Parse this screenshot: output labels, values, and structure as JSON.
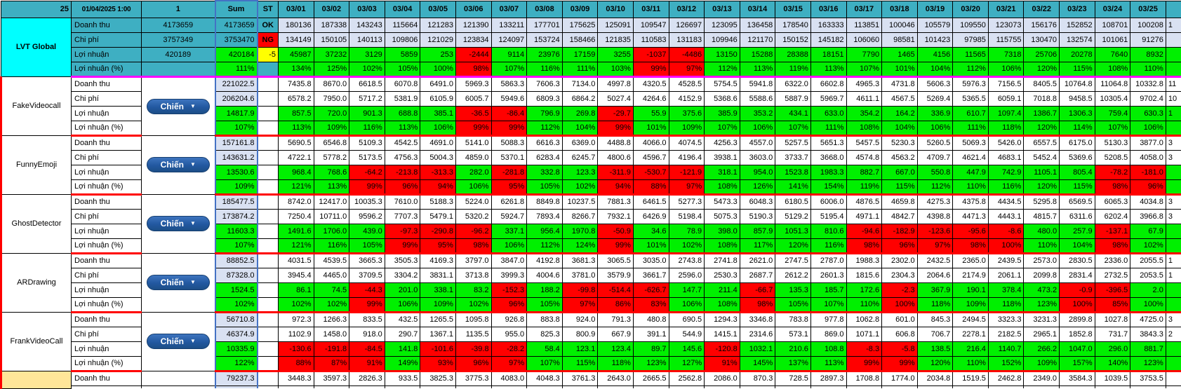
{
  "header": {
    "corner": "25",
    "timestamp": "01/04/2025 1:00",
    "col3": "1",
    "sum": "Sum",
    "st": "ST",
    "dates": [
      "03/01",
      "03/02",
      "03/03",
      "03/04",
      "03/05",
      "03/06",
      "03/07",
      "03/08",
      "03/09",
      "03/10",
      "03/11",
      "03/12",
      "03/13",
      "03/14",
      "03/15",
      "03/16",
      "03/17",
      "03/18",
      "03/19",
      "03/20",
      "03/21",
      "03/22",
      "03/23",
      "03/24",
      "03/25"
    ]
  },
  "metric_labels": [
    "Doanh thu",
    "Chi phí",
    "Lợi nhuận",
    "Lợi nhuận (%)"
  ],
  "button_label": "Chiến",
  "colors": {
    "teal": "#3EAFC2",
    "cyan": "#00FFFF",
    "light_blue": "#D9E1F2",
    "green": "#00F000",
    "red": "#FF0000",
    "yellow": "#FFFF00",
    "magenta_separator": "#FF00FF",
    "red_separator": "#FF0000",
    "tan": "#FFE699",
    "sum_column_border": "#4472C4",
    "button_blue": "#2258A0"
  },
  "groups": [
    {
      "name": "LVT Global",
      "type": "summary",
      "manual": [
        "4173659",
        "3757349",
        "420189",
        ""
      ],
      "sum": [
        "4173659",
        "3753470",
        "420184",
        "111%"
      ],
      "st": [
        "OK",
        "NG",
        "-5",
        ""
      ],
      "dt": [
        "180136",
        "187338",
        "143243",
        "115664",
        "121283",
        "121390",
        "133211",
        "177701",
        "175625",
        "125091",
        "109547",
        "126697",
        "123095",
        "136458",
        "178540",
        "163333",
        "113851",
        "100046",
        "105579",
        "109550",
        "123073",
        "156176",
        "152852",
        "108701",
        "100208"
      ],
      "cp": [
        "134149",
        "150105",
        "140113",
        "109806",
        "121029",
        "123834",
        "124097",
        "153724",
        "158466",
        "121835",
        "110583",
        "131183",
        "109946",
        "121170",
        "150152",
        "145182",
        "106060",
        "98581",
        "101423",
        "97985",
        "115755",
        "130470",
        "132574",
        "101061",
        "91276"
      ],
      "ln": [
        "45987",
        "37232",
        "3129",
        "5859",
        "253",
        "-2444",
        "9114",
        "23976",
        "17159",
        "3255",
        "-1037",
        "-4486",
        "13150",
        "15288",
        "28388",
        "18151",
        "7790",
        "1465",
        "4156",
        "11565",
        "7318",
        "25706",
        "20278",
        "7640",
        "8932"
      ],
      "pct": [
        "134%",
        "125%",
        "102%",
        "105%",
        "100%",
        "98%",
        "107%",
        "116%",
        "111%",
        "103%",
        "99%",
        "97%",
        "112%",
        "113%",
        "119%",
        "113%",
        "107%",
        "101%",
        "104%",
        "112%",
        "106%",
        "120%",
        "115%",
        "108%",
        "110%"
      ],
      "edge": [
        "1",
        "",
        "",
        ""
      ]
    },
    {
      "name": "FakeVideocall",
      "type": "app",
      "sum": [
        "221022.5",
        "206204.6",
        "14817.9",
        "107%"
      ],
      "dt": [
        "7435.8",
        "8670.0",
        "6618.5",
        "6070.8",
        "6491.0",
        "5969.3",
        "5863.3",
        "7606.3",
        "7134.0",
        "4997.8",
        "4320.5",
        "4528.5",
        "5754.5",
        "5941.8",
        "6322.0",
        "6602.8",
        "4965.3",
        "4731.8",
        "5606.3",
        "5976.3",
        "7156.5",
        "8405.5",
        "10764.8",
        "11064.8",
        "10332.8"
      ],
      "cp": [
        "6578.2",
        "7950.0",
        "5717.2",
        "5381.9",
        "6105.9",
        "6005.7",
        "5949.6",
        "6809.3",
        "6864.2",
        "5027.4",
        "4264.6",
        "4152.9",
        "5368.6",
        "5588.6",
        "5887.9",
        "5969.7",
        "4611.1",
        "4567.5",
        "5269.4",
        "5365.5",
        "6059.1",
        "7018.8",
        "9458.5",
        "10305.4",
        "9702.4"
      ],
      "ln": [
        "857.5",
        "720.0",
        "901.3",
        "688.8",
        "385.1",
        "-36.5",
        "-86.4",
        "796.9",
        "269.8",
        "-29.7",
        "55.9",
        "375.6",
        "385.9",
        "353.2",
        "434.1",
        "633.0",
        "354.2",
        "164.2",
        "336.9",
        "610.7",
        "1097.4",
        "1386.7",
        "1306.3",
        "759.4",
        "630.3"
      ],
      "pct": [
        "113%",
        "109%",
        "116%",
        "113%",
        "106%",
        "99%",
        "99%",
        "112%",
        "104%",
        "99%",
        "101%",
        "109%",
        "107%",
        "106%",
        "107%",
        "111%",
        "108%",
        "104%",
        "106%",
        "111%",
        "118%",
        "120%",
        "114%",
        "107%",
        "106%"
      ],
      "edge": [
        "11",
        "10",
        "1",
        ""
      ]
    },
    {
      "name": "FunnyEmoji",
      "type": "app",
      "sum": [
        "157161.8",
        "143631.2",
        "13530.6",
        "109%"
      ],
      "dt": [
        "5690.5",
        "6546.8",
        "5109.3",
        "4542.5",
        "4691.0",
        "5141.0",
        "5088.3",
        "6616.3",
        "6369.0",
        "4488.8",
        "4066.0",
        "4074.5",
        "4256.3",
        "4557.0",
        "5257.5",
        "5651.3",
        "5457.5",
        "5230.3",
        "5260.5",
        "5069.3",
        "5426.0",
        "6557.5",
        "6175.0",
        "5130.3",
        "3877.0"
      ],
      "cp": [
        "4722.1",
        "5778.2",
        "5173.5",
        "4756.3",
        "5004.3",
        "4859.0",
        "5370.1",
        "6283.4",
        "6245.7",
        "4800.6",
        "4596.7",
        "4196.4",
        "3938.1",
        "3603.0",
        "3733.7",
        "3668.0",
        "4574.8",
        "4563.2",
        "4709.7",
        "4621.4",
        "4683.1",
        "5452.4",
        "5369.6",
        "5208.5",
        "4058.0"
      ],
      "ln": [
        "968.4",
        "768.6",
        "-64.2",
        "-213.8",
        "-313.3",
        "282.0",
        "-281.8",
        "332.8",
        "123.3",
        "-311.9",
        "-530.7",
        "-121.9",
        "318.1",
        "954.0",
        "1523.8",
        "1983.3",
        "882.7",
        "667.0",
        "550.8",
        "447.9",
        "742.9",
        "1105.1",
        "805.4",
        "-78.2",
        "-181.0"
      ],
      "pct": [
        "121%",
        "113%",
        "99%",
        "96%",
        "94%",
        "106%",
        "95%",
        "105%",
        "102%",
        "94%",
        "88%",
        "97%",
        "108%",
        "126%",
        "141%",
        "154%",
        "119%",
        "115%",
        "112%",
        "110%",
        "116%",
        "120%",
        "115%",
        "98%",
        "96%"
      ],
      "edge": [
        "3",
        "3",
        "",
        ""
      ]
    },
    {
      "name": "GhostDetector",
      "type": "app",
      "sum": [
        "185477.5",
        "173874.2",
        "11603.3",
        "107%"
      ],
      "dt": [
        "8742.0",
        "12417.0",
        "10035.3",
        "7610.0",
        "5188.3",
        "5224.0",
        "6261.8",
        "8849.8",
        "10237.5",
        "7881.3",
        "6461.5",
        "5277.3",
        "5473.3",
        "6048.3",
        "6180.5",
        "6006.0",
        "4876.5",
        "4659.8",
        "4275.3",
        "4375.8",
        "4434.5",
        "5295.8",
        "6569.5",
        "6065.3",
        "4034.8"
      ],
      "cp": [
        "7250.4",
        "10711.0",
        "9596.2",
        "7707.3",
        "5479.1",
        "5320.2",
        "5924.7",
        "7893.4",
        "8266.7",
        "7932.1",
        "6426.9",
        "5198.4",
        "5075.3",
        "5190.3",
        "5129.2",
        "5195.4",
        "4971.1",
        "4842.7",
        "4398.8",
        "4471.3",
        "4443.1",
        "4815.7",
        "6311.6",
        "6202.4",
        "3966.8"
      ],
      "ln": [
        "1491.6",
        "1706.0",
        "439.0",
        "-97.3",
        "-290.8",
        "-96.2",
        "337.1",
        "956.4",
        "1970.8",
        "-50.9",
        "34.6",
        "78.9",
        "398.0",
        "857.9",
        "1051.3",
        "810.6",
        "-94.6",
        "-182.9",
        "-123.6",
        "-95.6",
        "-8.6",
        "480.0",
        "257.9",
        "-137.1",
        "67.9"
      ],
      "pct": [
        "121%",
        "116%",
        "105%",
        "99%",
        "95%",
        "98%",
        "106%",
        "112%",
        "124%",
        "99%",
        "101%",
        "102%",
        "108%",
        "117%",
        "120%",
        "116%",
        "98%",
        "96%",
        "97%",
        "98%",
        "100%",
        "110%",
        "104%",
        "98%",
        "102%"
      ],
      "edge": [
        "3",
        "3",
        "",
        ""
      ]
    },
    {
      "name": "ARDrawing",
      "type": "app",
      "sum": [
        "88852.5",
        "87328.0",
        "1524.5",
        "102%"
      ],
      "dt": [
        "4031.5",
        "4539.5",
        "3665.3",
        "3505.3",
        "4169.3",
        "3797.0",
        "3847.0",
        "4192.8",
        "3681.3",
        "3065.5",
        "3035.0",
        "2743.8",
        "2741.8",
        "2621.0",
        "2747.5",
        "2787.0",
        "1988.3",
        "2302.0",
        "2432.5",
        "2365.0",
        "2439.5",
        "2573.0",
        "2830.5",
        "2336.0",
        "2055.5"
      ],
      "cp": [
        "3945.4",
        "4465.0",
        "3709.5",
        "3304.2",
        "3831.1",
        "3713.8",
        "3999.3",
        "4004.6",
        "3781.0",
        "3579.9",
        "3661.7",
        "2596.0",
        "2530.3",
        "2687.7",
        "2612.2",
        "2601.3",
        "1815.6",
        "2304.3",
        "2064.6",
        "2174.9",
        "2061.1",
        "2099.8",
        "2831.4",
        "2732.5",
        "2053.5"
      ],
      "ln": [
        "86.1",
        "74.5",
        "-44.3",
        "201.0",
        "338.1",
        "83.2",
        "-152.3",
        "188.2",
        "-99.8",
        "-514.4",
        "-626.7",
        "147.7",
        "211.4",
        "-66.7",
        "135.3",
        "185.7",
        "172.6",
        "-2.3",
        "367.9",
        "190.1",
        "378.4",
        "473.2",
        "-0.9",
        "-396.5",
        "2.0"
      ],
      "pct": [
        "102%",
        "102%",
        "99%",
        "106%",
        "109%",
        "102%",
        "96%",
        "105%",
        "97%",
        "86%",
        "83%",
        "106%",
        "108%",
        "98%",
        "105%",
        "107%",
        "110%",
        "100%",
        "118%",
        "109%",
        "118%",
        "123%",
        "100%",
        "85%",
        "100%"
      ],
      "edge": [
        "1",
        "1",
        "",
        ""
      ]
    },
    {
      "name": "FrankVideoCall",
      "type": "app",
      "sum": [
        "56710.8",
        "46374.9",
        "10335.9",
        "122%"
      ],
      "dt": [
        "972.3",
        "1266.3",
        "833.5",
        "432.5",
        "1265.5",
        "1095.8",
        "926.8",
        "883.8",
        "924.0",
        "791.3",
        "480.8",
        "690.5",
        "1294.3",
        "3346.8",
        "783.8",
        "977.8",
        "1062.8",
        "601.0",
        "845.3",
        "2494.5",
        "3323.3",
        "3231.3",
        "2899.8",
        "1027.8",
        "4725.0"
      ],
      "cp": [
        "1102.9",
        "1458.0",
        "918.0",
        "290.7",
        "1367.1",
        "1135.5",
        "955.0",
        "825.3",
        "800.9",
        "667.9",
        "391.1",
        "544.9",
        "1415.1",
        "2314.6",
        "573.1",
        "869.0",
        "1071.1",
        "606.8",
        "706.7",
        "2278.1",
        "2182.5",
        "2965.1",
        "1852.8",
        "731.7",
        "3843.3"
      ],
      "ln": [
        "-130.6",
        "-191.8",
        "-84.5",
        "141.8",
        "-101.6",
        "-39.8",
        "-28.2",
        "58.4",
        "123.1",
        "123.4",
        "89.7",
        "145.6",
        "-120.8",
        "1032.1",
        "210.6",
        "108.8",
        "-8.3",
        "-5.8",
        "138.5",
        "216.4",
        "1140.7",
        "266.2",
        "1047.0",
        "296.0",
        "881.7"
      ],
      "pct": [
        "88%",
        "87%",
        "91%",
        "149%",
        "93%",
        "96%",
        "97%",
        "107%",
        "115%",
        "118%",
        "123%",
        "127%",
        "91%",
        "145%",
        "137%",
        "113%",
        "99%",
        "99%",
        "120%",
        "110%",
        "152%",
        "109%",
        "157%",
        "140%",
        "123%"
      ],
      "edge": [
        "3",
        "2",
        "",
        ""
      ]
    }
  ],
  "partial_group": {
    "name": "",
    "metric_label": "Doanh thu",
    "sum": "79237.3",
    "dt": [
      "3448.3",
      "3597.3",
      "2826.3",
      "933.5",
      "3825.3",
      "3775.3",
      "4083.0",
      "4048.3",
      "3761.3",
      "2643.0",
      "2665.5",
      "2562.8",
      "2086.0",
      "870.3",
      "728.5",
      "2897.3",
      "1708.8",
      "1774.0",
      "2034.8",
      "1519.5",
      "2462.8",
      "2349.0",
      "3584.3",
      "1039.5",
      "3753.5"
    ],
    "edge": ""
  }
}
